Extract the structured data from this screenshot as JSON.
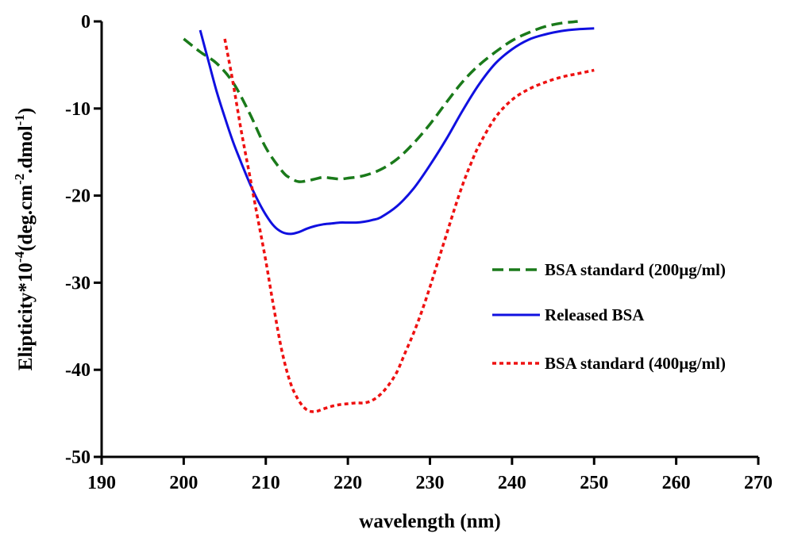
{
  "chart_data": {
    "type": "line",
    "xlabel": "wavelength (nm)",
    "ylabel": {
      "prefix": "Elipticity*10",
      "exp1": "-4",
      "mid": "(deg.cm",
      "exp2": "-2",
      "mid2": ".dmol",
      "exp3": "-1",
      "suffix": ")"
    },
    "xlim": [
      190,
      270
    ],
    "ylim": [
      -50,
      0
    ],
    "xticks": [
      190,
      200,
      210,
      220,
      230,
      240,
      250,
      260,
      270
    ],
    "yticks": [
      0,
      -10,
      -20,
      -30,
      -40,
      -50
    ],
    "grid": false,
    "legend_position": "right",
    "series": [
      {
        "name": "BSA standard (200µg/ml)",
        "color": "#1a7a1a",
        "style": "dashed",
        "x": [
          200,
          202,
          204,
          206,
          208,
          210,
          212,
          213,
          214,
          215,
          216,
          217,
          218,
          219,
          220,
          222,
          224,
          226,
          228,
          230,
          232,
          234,
          236,
          238,
          240,
          242,
          244,
          246,
          248
        ],
        "y": [
          -2,
          -3.5,
          -4.8,
          -7,
          -10.5,
          -14.5,
          -17.2,
          -18,
          -18.4,
          -18.3,
          -18.1,
          -17.9,
          -18,
          -18.1,
          -18,
          -17.7,
          -17,
          -15.8,
          -14,
          -11.8,
          -9.3,
          -6.9,
          -5,
          -3.5,
          -2.2,
          -1.3,
          -0.6,
          -0.2,
          0
        ]
      },
      {
        "name": "Released BSA",
        "color": "#1010e0",
        "style": "solid",
        "x": [
          202,
          203,
          204,
          205,
          206,
          207,
          208,
          209,
          210,
          211,
          212,
          213,
          214,
          215,
          216,
          217,
          218,
          219,
          220,
          221,
          222,
          223,
          224,
          226,
          228,
          230,
          232,
          234,
          236,
          238,
          240,
          242,
          244,
          246,
          248,
          250
        ],
        "y": [
          -1,
          -4.5,
          -8,
          -11,
          -13.8,
          -16.2,
          -18.5,
          -20.5,
          -22.2,
          -23.5,
          -24.2,
          -24.4,
          -24.2,
          -23.8,
          -23.5,
          -23.3,
          -23.2,
          -23.1,
          -23.1,
          -23.1,
          -23,
          -22.8,
          -22.5,
          -21.2,
          -19.2,
          -16.5,
          -13.5,
          -10.2,
          -7.2,
          -4.8,
          -3.2,
          -2.1,
          -1.5,
          -1.1,
          -0.9,
          -0.8
        ]
      },
      {
        "name": "BSA standard (400µg/ml)",
        "color": "#ee1111",
        "style": "dotted",
        "x": [
          205,
          206,
          207,
          208,
          209,
          210,
          211,
          212,
          213,
          214,
          215,
          216,
          217,
          218,
          219,
          220,
          221,
          222,
          223,
          224,
          225,
          226,
          227,
          228,
          229,
          230,
          231,
          232,
          233,
          234,
          235,
          236,
          238,
          240,
          242,
          244,
          246,
          248,
          250
        ],
        "y": [
          -2,
          -7,
          -12.5,
          -17.5,
          -22.5,
          -27.5,
          -33,
          -38,
          -41.5,
          -43.5,
          -44.6,
          -44.8,
          -44.5,
          -44.2,
          -44,
          -43.9,
          -43.8,
          -43.8,
          -43.5,
          -42.8,
          -41.7,
          -40.2,
          -38,
          -35.8,
          -33.3,
          -30.5,
          -27.5,
          -24.5,
          -21.5,
          -18.7,
          -16.3,
          -14.2,
          -11,
          -9,
          -7.8,
          -7,
          -6.4,
          -6,
          -5.6
        ]
      }
    ]
  }
}
